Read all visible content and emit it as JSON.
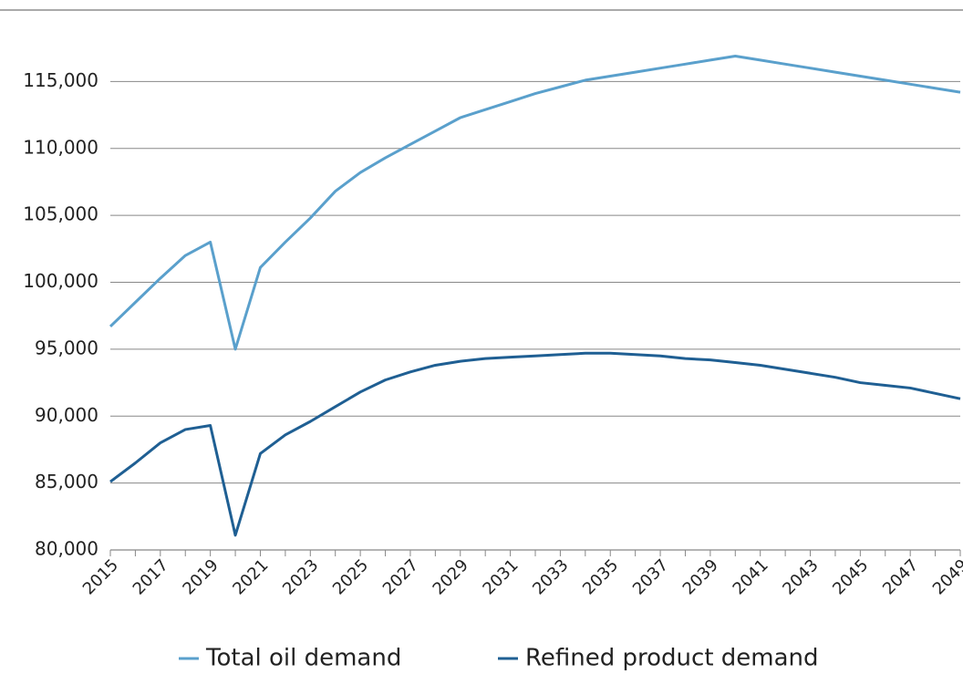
{
  "chart_data": {
    "type": "line",
    "categories": [
      "2015",
      null,
      "2017",
      null,
      "2019",
      null,
      "2021",
      null,
      "2023",
      null,
      "2025",
      null,
      "2027",
      null,
      "2029",
      null,
      "2031",
      null,
      "2033",
      null,
      "2035",
      null,
      "2037",
      null,
      "2039",
      null,
      "2041",
      null,
      "2043",
      null,
      "2045",
      null,
      "2047",
      null,
      "2049"
    ],
    "series": [
      {
        "name": "Total oil demand",
        "color": "#5aa0cc",
        "values": [
          96700,
          98500,
          100300,
          102000,
          103000,
          95000,
          101100,
          103000,
          104800,
          106800,
          108200,
          109300,
          110300,
          111300,
          112300,
          112900,
          113500,
          114100,
          114600,
          115100,
          115400,
          115700,
          116000,
          116300,
          116600,
          116900,
          116600,
          116300,
          116000,
          115700,
          115400,
          115100,
          114800,
          114500,
          114200
        ]
      },
      {
        "name": "Refined product demand",
        "color": "#1f5f93",
        "values": [
          85100,
          86500,
          88000,
          89000,
          89300,
          81100,
          87200,
          88600,
          89600,
          90700,
          91800,
          92700,
          93300,
          93800,
          94100,
          94300,
          94400,
          94500,
          94600,
          94700,
          94700,
          94600,
          94500,
          94300,
          94200,
          94000,
          93800,
          93500,
          93200,
          92900,
          92500,
          92300,
          92100,
          91700,
          91300
        ]
      }
    ],
    "ylim": [
      80000,
      120000
    ],
    "yticks": [
      {
        "value": 80000,
        "label": "80,000"
      },
      {
        "value": 85000,
        "label": "85,000"
      },
      {
        "value": 90000,
        "label": "90,000"
      },
      {
        "value": 95000,
        "label": "95,000"
      },
      {
        "value": 100000,
        "label": "100,000"
      },
      {
        "value": 105000,
        "label": "105,000"
      },
      {
        "value": 110000,
        "label": "110,000"
      },
      {
        "value": 115000,
        "label": "115,000"
      }
    ],
    "grid": true,
    "legend": "bottom"
  }
}
